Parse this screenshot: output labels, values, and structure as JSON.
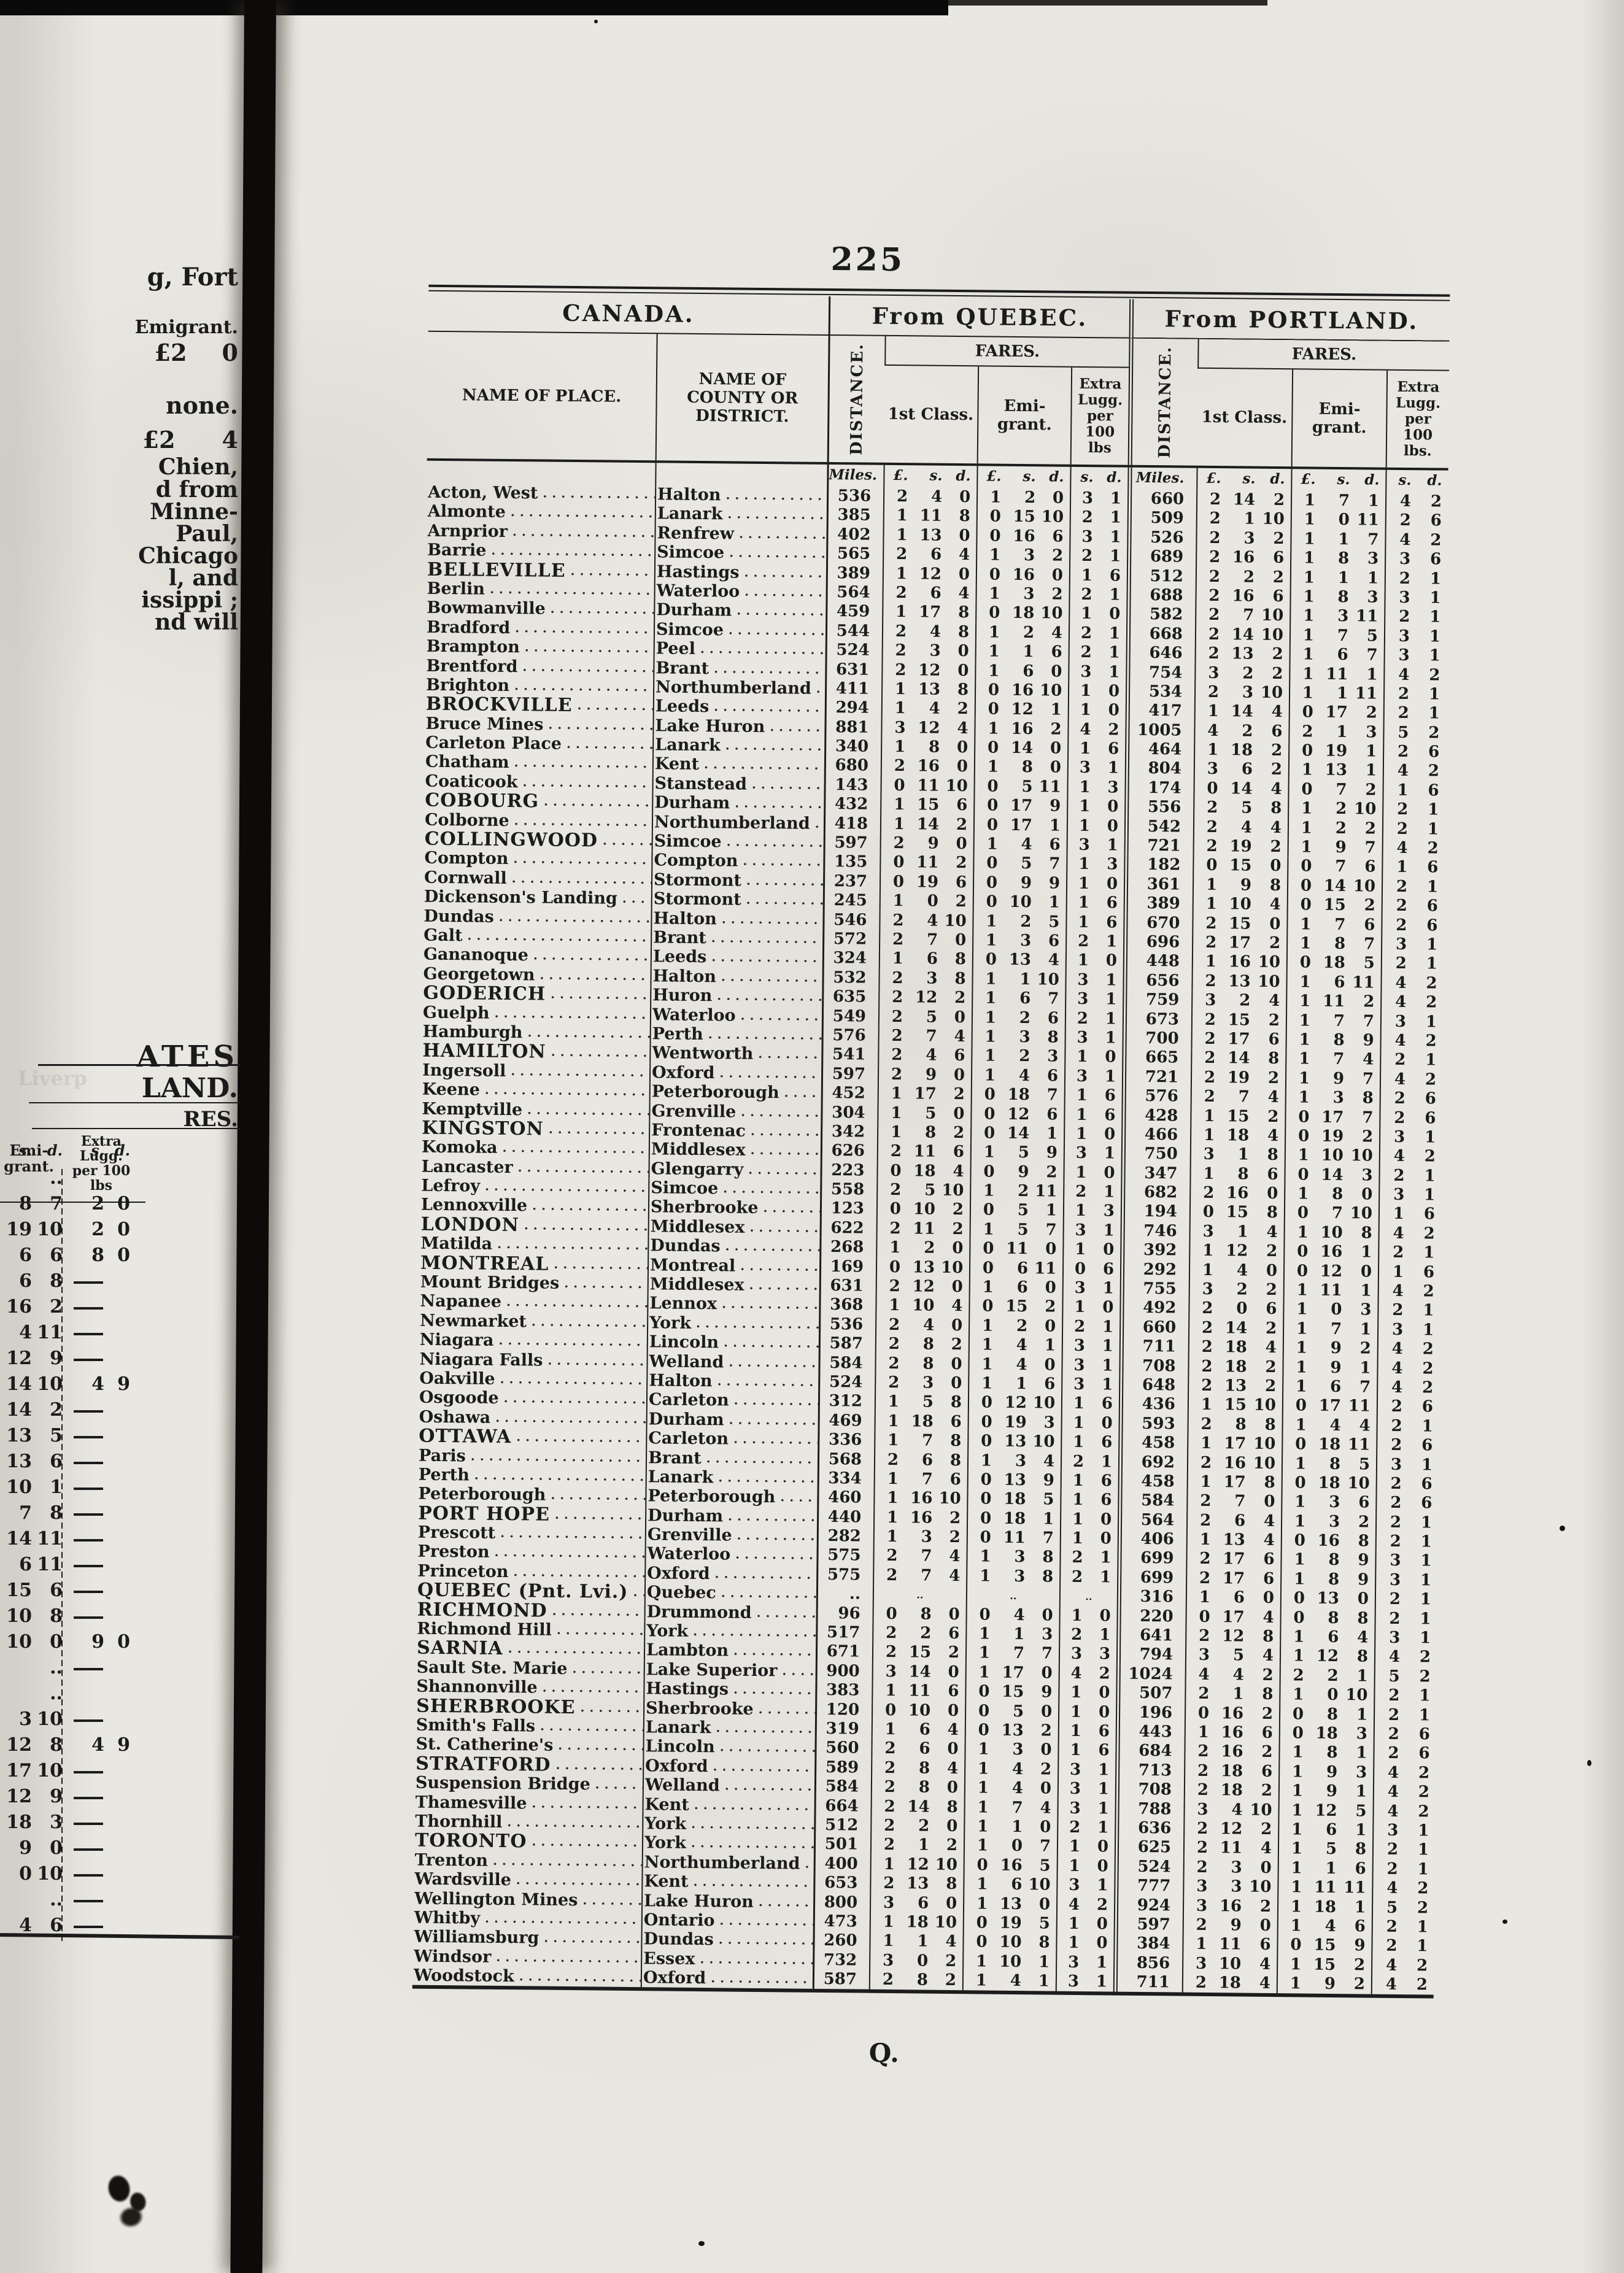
{
  "page": {
    "number": "225",
    "catchword": "Q.",
    "sections": {
      "canada": "CANADA.",
      "quebec": "From QUEBEC.",
      "portland": "From PORTLAND."
    },
    "columns": {
      "place": "NAME OF PLACE.",
      "county": "NAME OF COUNTY OR DISTRICT.",
      "distance": "DISTANCE.",
      "fares": "FARES.",
      "first_class": "1st Class.",
      "emigrant": "Emi-grant.",
      "extra_lugg": "Extra Lugg. per 100 lbs",
      "extra_lugg_portland": "Extra Lugg. per 100 lbs.",
      "units": {
        "miles": "Miles.",
        "lsd": [
          "£.",
          "s.",
          "d."
        ],
        "sd": [
          "s.",
          "d."
        ]
      }
    },
    "rows": [
      [
        "Acton, West",
        "Halton",
        "536",
        "2 4 0",
        "1 2 0",
        "3 1",
        "660",
        "2 14 2",
        "1 7 1",
        "4 2",
        0
      ],
      [
        "Almonte",
        "Lanark",
        "385",
        "1 11 8",
        "0 15 10",
        "2 1",
        "509",
        "2 1 10",
        "1 0 11",
        "2 6",
        0
      ],
      [
        "Arnprior",
        "Renfrew",
        "402",
        "1 13 0",
        "0 16 6",
        "3 1",
        "526",
        "2 3 2",
        "1 1 7",
        "4 2",
        0
      ],
      [
        "Barrie",
        "Simcoe",
        "565",
        "2 6 4",
        "1 3 2",
        "2 1",
        "689",
        "2 16 6",
        "1 8 3",
        "3 6",
        0
      ],
      [
        "BELLEVILLE",
        "Hastings",
        "389",
        "1 12 0",
        "0 16 0",
        "1 6",
        "512",
        "2 2 2",
        "1 1 1",
        "2 1",
        1
      ],
      [
        "Berlin",
        "Waterloo",
        "564",
        "2 6 4",
        "1 3 2",
        "2 1",
        "688",
        "2 16 6",
        "1 8 3",
        "3 1",
        0
      ],
      [
        "Bowmanville",
        "Durham",
        "459",
        "1 17 8",
        "0 18 10",
        "1 0",
        "582",
        "2 7 10",
        "1 3 11",
        "2 1",
        0
      ],
      [
        "Bradford",
        "Simcoe",
        "544",
        "2 4 8",
        "1 2 4",
        "2 1",
        "668",
        "2 14 10",
        "1 7 5",
        "3 1",
        0
      ],
      [
        "Brampton",
        "Peel",
        "524",
        "2 3 0",
        "1 1 6",
        "2 1",
        "646",
        "2 13 2",
        "1 6 7",
        "3 1",
        0
      ],
      [
        "Brentford",
        "Brant",
        "631",
        "2 12 0",
        "1 6 0",
        "3 1",
        "754",
        "3 2 2",
        "1 11 1",
        "4 2",
        0
      ],
      [
        "Brighton",
        "Northumberland",
        "411",
        "1 13 8",
        "0 16 10",
        "1 0",
        "534",
        "2 3 10",
        "1 1 11",
        "2 1",
        0
      ],
      [
        "BROCKVILLE",
        "Leeds",
        "294",
        "1 4 2",
        "0 12 1",
        "1 0",
        "417",
        "1 14 4",
        "0 17 2",
        "2 1",
        1
      ],
      [
        "Bruce Mines",
        "Lake Huron",
        "881",
        "3 12 4",
        "1 16 2",
        "4 2",
        "1005",
        "4 2 6",
        "2 1 3",
        "5 2",
        0
      ],
      [
        "Carleton Place",
        "Lanark",
        "340",
        "1 8 0",
        "0 14 0",
        "1 6",
        "464",
        "1 18 2",
        "0 19 1",
        "2 6",
        0
      ],
      [
        "Chatham",
        "Kent",
        "680",
        "2 16 0",
        "1 8 0",
        "3 1",
        "804",
        "3 6 2",
        "1 13 1",
        "4 2",
        0
      ],
      [
        "Coaticook",
        "Stanstead",
        "143",
        "0 11 10",
        "0 5 11",
        "1 3",
        "174",
        "0 14 4",
        "0 7 2",
        "1 6",
        0
      ],
      [
        "COBOURG",
        "Durham",
        "432",
        "1 15 6",
        "0 17 9",
        "1 0",
        "556",
        "2 5 8",
        "1 2 10",
        "2 1",
        1
      ],
      [
        "Colborne",
        "Northumberland",
        "418",
        "1 14 2",
        "0 17 1",
        "1 0",
        "542",
        "2 4 4",
        "1 2 2",
        "2 1",
        0
      ],
      [
        "COLLINGWOOD",
        "Simcoe",
        "597",
        "2 9 0",
        "1 4 6",
        "3 1",
        "721",
        "2 19 2",
        "1 9 7",
        "4 2",
        1
      ],
      [
        "Compton",
        "Compton",
        "135",
        "0 11 2",
        "0 5 7",
        "1 3",
        "182",
        "0 15 0",
        "0 7 6",
        "1 6",
        0
      ],
      [
        "Cornwall",
        "Stormont",
        "237",
        "0 19 6",
        "0 9 9",
        "1 0",
        "361",
        "1 9 8",
        "0 14 10",
        "2 1",
        0
      ],
      [
        "Dickenson's Landing",
        "Stormont",
        "245",
        "1 0 2",
        "0 10 1",
        "1 6",
        "389",
        "1 10 4",
        "0 15 2",
        "2 6",
        0
      ],
      [
        "Dundas",
        "Halton",
        "546",
        "2 4 10",
        "1 2 5",
        "1 6",
        "670",
        "2 15 0",
        "1 7 6",
        "2 6",
        0
      ],
      [
        "Galt",
        "Brant",
        "572",
        "2 7 0",
        "1 3 6",
        "2 1",
        "696",
        "2 17 2",
        "1 8 7",
        "3 1",
        0
      ],
      [
        "Gananoque",
        "Leeds",
        "324",
        "1 6 8",
        "0 13 4",
        "1 0",
        "448",
        "1 16 10",
        "0 18 5",
        "2 1",
        0
      ],
      [
        "Georgetown",
        "Halton",
        "532",
        "2 3 8",
        "1 1 10",
        "3 1",
        "656",
        "2 13 10",
        "1 6 11",
        "4 2",
        0
      ],
      [
        "GODERICH",
        "Huron",
        "635",
        "2 12 2",
        "1 6 7",
        "3 1",
        "759",
        "3 2 4",
        "1 11 2",
        "4 2",
        1
      ],
      [
        "Guelph",
        "Waterloo",
        "549",
        "2 5 0",
        "1 2 6",
        "2 1",
        "673",
        "2 15 2",
        "1 7 7",
        "3 1",
        0
      ],
      [
        "Hamburgh",
        "Perth",
        "576",
        "2 7 4",
        "1 3 8",
        "3 1",
        "700",
        "2 17 6",
        "1 8 9",
        "4 2",
        0
      ],
      [
        "HAMILTON",
        "Wentworth",
        "541",
        "2 4 6",
        "1 2 3",
        "1 0",
        "665",
        "2 14 8",
        "1 7 4",
        "2 1",
        1
      ],
      [
        "Ingersoll",
        "Oxford",
        "597",
        "2 9 0",
        "1 4 6",
        "3 1",
        "721",
        "2 19 2",
        "1 9 7",
        "4 2",
        0
      ],
      [
        "Keene",
        "Peterborough",
        "452",
        "1 17 2",
        "0 18 7",
        "1 6",
        "576",
        "2 7 4",
        "1 3 8",
        "2 6",
        0
      ],
      [
        "Kemptville",
        "Grenville",
        "304",
        "1 5 0",
        "0 12 6",
        "1 6",
        "428",
        "1 15 2",
        "0 17 7",
        "2 6",
        0
      ],
      [
        "KINGSTON",
        "Frontenac",
        "342",
        "1 8 2",
        "0 14 1",
        "1 0",
        "466",
        "1 18 4",
        "0 19 2",
        "3 1",
        1
      ],
      [
        "Komoka",
        "Middlesex",
        "626",
        "2 11 6",
        "1 5 9",
        "3 1",
        "750",
        "3 1 8",
        "1 10 10",
        "4 2",
        0
      ],
      [
        "Lancaster",
        "Glengarry",
        "223",
        "0 18 4",
        "0 9 2",
        "1 0",
        "347",
        "1 8 6",
        "0 14 3",
        "2 1",
        0
      ],
      [
        "Lefroy",
        "Simcoe",
        "558",
        "2 5 10",
        "1 2 11",
        "2 1",
        "682",
        "2 16 0",
        "1 8 0",
        "3 1",
        0
      ],
      [
        "Lennoxville",
        "Sherbrooke",
        "123",
        "0 10 2",
        "0 5 1",
        "1 3",
        "194",
        "0 15 8",
        "0 7 10",
        "1 6",
        0
      ],
      [
        "LONDON",
        "Middlesex",
        "622",
        "2 11 2",
        "1 5 7",
        "3 1",
        "746",
        "3 1 4",
        "1 10 8",
        "4 2",
        1
      ],
      [
        "Matilda",
        "Dundas",
        "268",
        "1 2 0",
        "0 11 0",
        "1 0",
        "392",
        "1 12 2",
        "0 16 1",
        "2 1",
        0
      ],
      [
        "MONTREAL",
        "Montreal",
        "169",
        "0 13 10",
        "0 6 11",
        "0 6",
        "292",
        "1 4 0",
        "0 12 0",
        "1 6",
        1
      ],
      [
        "Mount Bridges",
        "Middlesex",
        "631",
        "2 12 0",
        "1 6 0",
        "3 1",
        "755",
        "3 2 2",
        "1 11 1",
        "4 2",
        0
      ],
      [
        "Napanee",
        "Lennox",
        "368",
        "1 10 4",
        "0 15 2",
        "1 0",
        "492",
        "2 0 6",
        "1 0 3",
        "2 1",
        0
      ],
      [
        "Newmarket",
        "York",
        "536",
        "2 4 0",
        "1 2 0",
        "2 1",
        "660",
        "2 14 2",
        "1 7 1",
        "3 1",
        0
      ],
      [
        "Niagara",
        "Lincoln",
        "587",
        "2 8 2",
        "1 4 1",
        "3 1",
        "711",
        "2 18 4",
        "1 9 2",
        "4 2",
        0
      ],
      [
        "Niagara Falls",
        "Welland",
        "584",
        "2 8 0",
        "1 4 0",
        "3 1",
        "708",
        "2 18 2",
        "1 9 1",
        "4 2",
        0
      ],
      [
        "Oakville",
        "Halton",
        "524",
        "2 3 0",
        "1 1 6",
        "3 1",
        "648",
        "2 13 2",
        "1 6 7",
        "4 2",
        0
      ],
      [
        "Osgoode",
        "Carleton",
        "312",
        "1 5 8",
        "0 12 10",
        "1 6",
        "436",
        "1 15 10",
        "0 17 11",
        "2 6",
        0
      ],
      [
        "Oshawa",
        "Durham",
        "469",
        "1 18 6",
        "0 19 3",
        "1 0",
        "593",
        "2 8 8",
        "1 4 4",
        "2 1",
        0
      ],
      [
        "OTTAWA",
        "Carleton",
        "336",
        "1 7 8",
        "0 13 10",
        "1 6",
        "458",
        "1 17 10",
        "0 18 11",
        "2 6",
        1
      ],
      [
        "Paris",
        "Brant",
        "568",
        "2 6 8",
        "1 3 4",
        "2 1",
        "692",
        "2 16 10",
        "1 8 5",
        "3 1",
        0
      ],
      [
        "Perth",
        "Lanark",
        "334",
        "1 7 6",
        "0 13 9",
        "1 6",
        "458",
        "1 17 8",
        "0 18 10",
        "2 6",
        0
      ],
      [
        "Peterborough",
        "Peterborough",
        "460",
        "1 16 10",
        "0 18 5",
        "1 6",
        "584",
        "2 7 0",
        "1 3 6",
        "2 6",
        0
      ],
      [
        "PORT HOPE",
        "Durham",
        "440",
        "1 16 2",
        "0 18 1",
        "1 0",
        "564",
        "2 6 4",
        "1 3 2",
        "2 1",
        1
      ],
      [
        "Prescott",
        "Grenville",
        "282",
        "1 3 2",
        "0 11 7",
        "1 0",
        "406",
        "1 13 4",
        "0 16 8",
        "2 1",
        0
      ],
      [
        "Preston",
        "Waterloo",
        "575",
        "2 7 4",
        "1 3 8",
        "2 1",
        "699",
        "2 17 6",
        "1 8 9",
        "3 1",
        0
      ],
      [
        "Princeton",
        "Oxford",
        "575",
        "2 7 4",
        "1 3 8",
        "2 1",
        "699",
        "2 17 6",
        "1 8 9",
        "3 1",
        0
      ],
      [
        "QUEBEC (Pnt. Lvi.)",
        "Quebec",
        "..",
        "..",
        "..",
        "..",
        "316",
        "1 6 0",
        "0 13 0",
        "2 1",
        1
      ],
      [
        "RICHMOND",
        "Drummond",
        "96",
        "0 8 0",
        "0 4 0",
        "1 0",
        "220",
        "0 17 4",
        "0 8 8",
        "2 1",
        1
      ],
      [
        "Richmond Hill",
        "York",
        "517",
        "2 2 6",
        "1 1 3",
        "2 1",
        "641",
        "2 12 8",
        "1 6 4",
        "3 1",
        0
      ],
      [
        "SARNIA",
        "Lambton",
        "671",
        "2 15 2",
        "1 7 7",
        "3 3",
        "794",
        "3 5 4",
        "1 12 8",
        "4 2",
        1
      ],
      [
        "Sault Ste. Marie",
        "Lake Superior",
        "900",
        "3 14 0",
        "1 17 0",
        "4 2",
        "1024",
        "4 4 2",
        "2 2 1",
        "5 2",
        0
      ],
      [
        "Shannonville",
        "Hastings",
        "383",
        "1 11 6",
        "0 15 9",
        "1 0",
        "507",
        "2 1 8",
        "1 0 10",
        "2 1",
        0
      ],
      [
        "SHERBROOKE",
        "Sherbrooke",
        "120",
        "0 10 0",
        "0 5 0",
        "1 0",
        "196",
        "0 16 2",
        "0 8 1",
        "2 1",
        1
      ],
      [
        "Smith's Falls",
        "Lanark",
        "319",
        "1 6 4",
        "0 13 2",
        "1 6",
        "443",
        "1 16 6",
        "0 18 3",
        "2 6",
        0
      ],
      [
        "St. Catherine's",
        "Lincoln",
        "560",
        "2 6 0",
        "1 3 0",
        "1 6",
        "684",
        "2 16 2",
        "1 8 1",
        "2 6",
        0
      ],
      [
        "STRATFORD",
        "Oxford",
        "589",
        "2 8 4",
        "1 4 2",
        "3 1",
        "713",
        "2 18 6",
        "1 9 3",
        "4 2",
        1
      ],
      [
        "Suspension Bridge",
        "Welland",
        "584",
        "2 8 0",
        "1 4 0",
        "3 1",
        "708",
        "2 18 2",
        "1 9 1",
        "4 2",
        0
      ],
      [
        "Thamesville",
        "Kent",
        "664",
        "2 14 8",
        "1 7 4",
        "3 1",
        "788",
        "3 4 10",
        "1 12 5",
        "4 2",
        0
      ],
      [
        "Thornhill",
        "York",
        "512",
        "2 2 0",
        "1 1 0",
        "2 1",
        "636",
        "2 12 2",
        "1 6 1",
        "3 1",
        0
      ],
      [
        "TORONTO",
        "York",
        "501",
        "2 1 2",
        "1 0 7",
        "1 0",
        "625",
        "2 11 4",
        "1 5 8",
        "2 1",
        1
      ],
      [
        "Trenton",
        "Northumberland",
        "400",
        "1 12 10",
        "0 16 5",
        "1 0",
        "524",
        "2 3 0",
        "1 1 6",
        "2 1",
        0
      ],
      [
        "Wardsville",
        "Kent",
        "653",
        "2 13 8",
        "1 6 10",
        "3 1",
        "777",
        "3 3 10",
        "1 11 11",
        "4 2",
        0
      ],
      [
        "Wellington Mines",
        "Lake Huron",
        "800",
        "3 6 0",
        "1 13 0",
        "4 2",
        "924",
        "3 16 2",
        "1 18 1",
        "5 2",
        0
      ],
      [
        "Whitby",
        "Ontario",
        "473",
        "1 18 10",
        "0 19 5",
        "1 0",
        "597",
        "2 9 0",
        "1 4 6",
        "2 1",
        0
      ],
      [
        "Williamsburg",
        "Dundas",
        "260",
        "1 1 4",
        "0 10 8",
        "1 0",
        "384",
        "1 11 6",
        "0 15 9",
        "2 1",
        0
      ],
      [
        "Windsor",
        "Essex",
        "732",
        "3 0 2",
        "1 10 1",
        "3 1",
        "856",
        "3 10 4",
        "1 15 2",
        "4 2",
        0
      ],
      [
        "Woodstock",
        "Oxford",
        "587",
        "2 8 2",
        "1 4 1",
        "3 1",
        "711",
        "2 18 4",
        "1 9 2",
        "4 2",
        0
      ]
    ]
  },
  "margin": {
    "lines": [
      [
        "g, Fort",
        428,
        40
      ],
      [
        "Emigrant.",
        516,
        30
      ],
      [
        "£2   0",
        552,
        38
      ],
      [
        "none.",
        638,
        38
      ],
      [
        "£2   4",
        694,
        38
      ],
      [
        "Chien,",
        740,
        36
      ],
      [
        "d from",
        777,
        36
      ],
      [
        "Minne-",
        813,
        36
      ],
      [
        "Paul,",
        849,
        36
      ],
      [
        "Chicago",
        885,
        36
      ],
      [
        "l, and",
        921,
        36
      ],
      [
        "issippi ;",
        957,
        36
      ],
      [
        "nd will",
        993,
        36
      ],
      [
        "ATES",
        1694,
        48
      ],
      [
        "LAND.",
        1748,
        44
      ],
      [
        "RES.",
        1804,
        34
      ]
    ],
    "ghost_text": "Liverp",
    "table": {
      "header_emigrant": "Emi-grant.",
      "header_lugg": "Extra Lugg. per 100 lbs",
      "units": [
        "s.",
        "d.",
        "s.",
        "d."
      ],
      "rows": [
        [
          "..",
          null
        ],
        [
          "8 7",
          "2 0"
        ],
        [
          "19 10",
          "2 0"
        ],
        [
          "6 6",
          "8 0"
        ],
        [
          "6 8",
          ""
        ],
        [
          "16 2",
          ""
        ],
        [
          "4 11",
          ""
        ],
        [
          "12 9",
          ""
        ],
        [
          "14 10",
          "4 9"
        ],
        [
          "14 2",
          ""
        ],
        [
          "13 5",
          ""
        ],
        [
          "13 6",
          ""
        ],
        [
          "10 1",
          ""
        ],
        [
          "7 8",
          ""
        ],
        [
          "14 11",
          ""
        ],
        [
          "6 11",
          ""
        ],
        [
          "15 6",
          ""
        ],
        [
          "10 8",
          ""
        ],
        [
          "10 0",
          "9 0"
        ],
        [
          "..",
          ""
        ],
        [
          "..",
          null
        ],
        [
          "3 10",
          ""
        ],
        [
          "12 8",
          "4 9"
        ],
        [
          "17 10",
          ""
        ],
        [
          "12 9",
          ""
        ],
        [
          "18 3",
          ""
        ],
        [
          "9 0",
          ""
        ],
        [
          "0 10",
          ""
        ],
        [
          "..",
          ""
        ],
        [
          "4 6",
          ""
        ]
      ]
    }
  }
}
